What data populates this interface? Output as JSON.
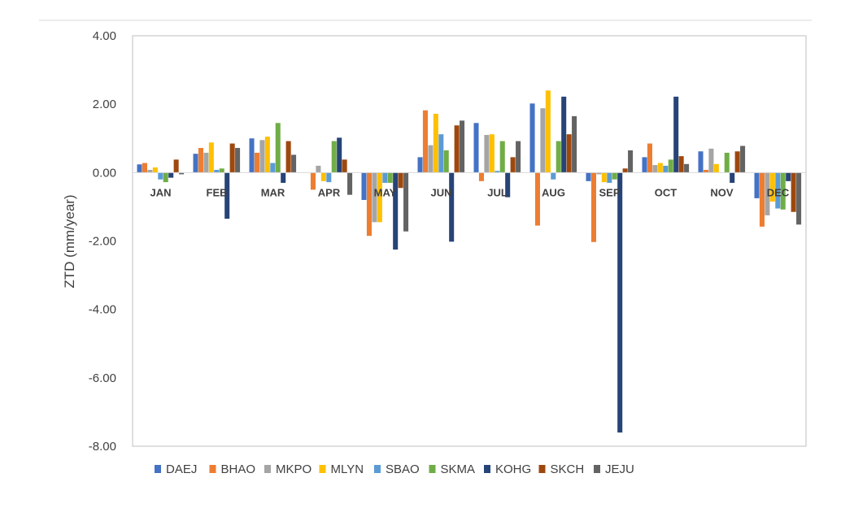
{
  "chart_data": {
    "type": "bar",
    "title": "",
    "xlabel": "",
    "ylabel": "ZTD (mm/year)",
    "ylim": [
      -8,
      4
    ],
    "yticks": [
      "4.00",
      "2.00",
      "0.00",
      "-2.00",
      "-4.00",
      "-6.00",
      "-8.00"
    ],
    "grid": false,
    "legend_position": "bottom",
    "categories": [
      "JAN",
      "FEB",
      "MAR",
      "APR",
      "MAY",
      "JUN",
      "JUL",
      "AUG",
      "SEP",
      "OCT",
      "NOV",
      "DEC"
    ],
    "series": [
      {
        "name": "DAEJ",
        "color": "#4472C4",
        "values": [
          0.24,
          0.55,
          1.0,
          0.0,
          -0.8,
          0.45,
          1.45,
          2.02,
          -0.25,
          0.45,
          0.62,
          -0.75
        ]
      },
      {
        "name": "BHAO",
        "color": "#ED7D31",
        "values": [
          0.28,
          0.72,
          0.58,
          -0.5,
          -1.85,
          1.82,
          -0.25,
          -1.55,
          -2.03,
          0.85,
          0.08,
          -1.58
        ]
      },
      {
        "name": "MKPO",
        "color": "#A5A5A5",
        "values": [
          0.08,
          0.58,
          0.95,
          0.2,
          -1.45,
          0.8,
          1.1,
          1.88,
          -0.05,
          0.22,
          0.7,
          -1.25
        ]
      },
      {
        "name": "MLYN",
        "color": "#FFC000",
        "values": [
          0.15,
          0.88,
          1.05,
          -0.25,
          -1.45,
          1.72,
          1.12,
          2.4,
          -0.28,
          0.28,
          0.25,
          -0.85
        ]
      },
      {
        "name": "SBAO",
        "color": "#5B9BD5",
        "values": [
          -0.2,
          0.08,
          0.28,
          -0.28,
          -0.3,
          1.12,
          0.05,
          -0.2,
          -0.3,
          0.2,
          0.0,
          -1.05
        ]
      },
      {
        "name": "SKMA",
        "color": "#70AD47",
        "values": [
          -0.28,
          0.12,
          1.45,
          0.92,
          -0.3,
          0.65,
          0.92,
          0.92,
          -0.2,
          0.38,
          0.58,
          -1.08
        ]
      },
      {
        "name": "KOHG",
        "color": "#264478",
        "values": [
          -0.15,
          -1.35,
          -0.3,
          1.02,
          -2.25,
          -2.02,
          -0.72,
          2.22,
          -7.6,
          2.22,
          -0.3,
          -0.25
        ]
      },
      {
        "name": "SKCH",
        "color": "#9E480E",
        "values": [
          0.38,
          0.85,
          0.92,
          0.38,
          -0.45,
          1.38,
          0.45,
          1.12,
          0.12,
          0.48,
          0.62,
          -1.15
        ]
      },
      {
        "name": "JEJU",
        "color": "#636363",
        "values": [
          -0.05,
          0.72,
          0.52,
          -0.65,
          -1.72,
          1.52,
          0.92,
          1.65,
          0.65,
          0.25,
          0.78,
          -1.52
        ]
      }
    ]
  }
}
